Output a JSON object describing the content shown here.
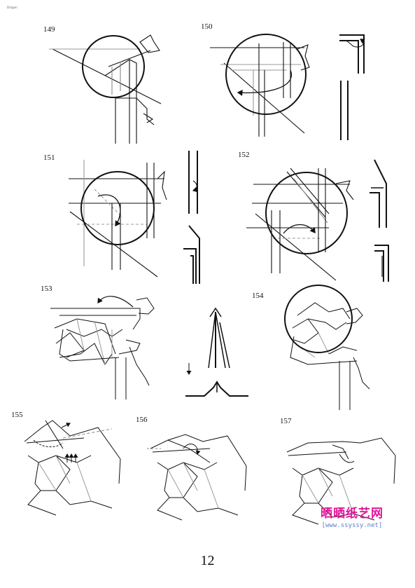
{
  "corner_mark": "Dragon",
  "steps": [
    {
      "number": "149"
    },
    {
      "number": "150"
    },
    {
      "number": "151"
    },
    {
      "number": "152"
    },
    {
      "number": "153"
    },
    {
      "number": "154"
    },
    {
      "number": "155"
    },
    {
      "number": "156"
    },
    {
      "number": "157"
    }
  ],
  "page_number": "12",
  "watermark": {
    "site_name": "晒晒纸艺网",
    "url": "[www.ssyssy.net]",
    "color_text": "#e0179a",
    "color_url": "#5a7ec9"
  }
}
